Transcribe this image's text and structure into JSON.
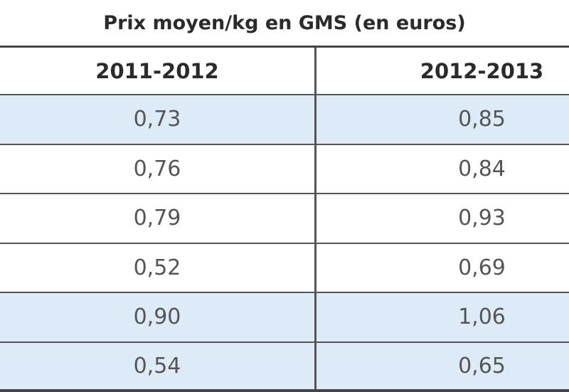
{
  "table": {
    "title": "Prix moyen/kg en GMS (en euros)",
    "columns": [
      "2011-2012",
      "2012-2013"
    ],
    "rows": [
      [
        "0,73",
        "0,85"
      ],
      [
        "0,76",
        "0,84"
      ],
      [
        "0,79",
        "0,93"
      ],
      [
        "0,52",
        "0,69"
      ],
      [
        "0,90",
        "1,06"
      ],
      [
        "0,54",
        "0,65"
      ]
    ]
  }
}
